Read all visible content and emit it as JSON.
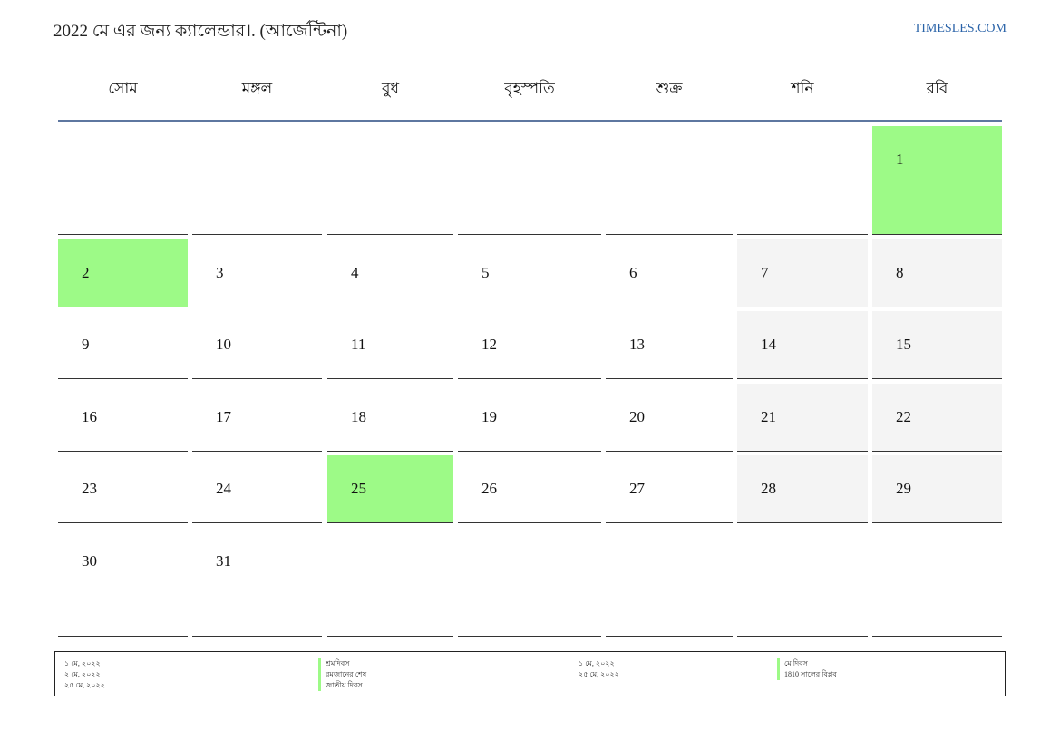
{
  "header": {
    "title": "2022 মে এর জন্য ক্যালেন্ডার।. (আর্জেন্টিনা)",
    "site": "TIMESLES.COM"
  },
  "weekdays": [
    "সোম",
    "মঙ্গল",
    "বুধ",
    "বৃহস্পতি",
    "শুক্র",
    "শনি",
    "রবি"
  ],
  "weeks": [
    [
      null,
      null,
      null,
      null,
      null,
      null,
      1
    ],
    [
      2,
      3,
      4,
      5,
      6,
      7,
      8
    ],
    [
      9,
      10,
      11,
      12,
      13,
      14,
      15
    ],
    [
      16,
      17,
      18,
      19,
      20,
      21,
      22
    ],
    [
      23,
      24,
      25,
      26,
      27,
      28,
      29
    ],
    [
      30,
      31,
      null,
      null,
      null,
      null,
      null
    ]
  ],
  "holiday_days": [
    1,
    2,
    25
  ],
  "colors": {
    "holiday": "#9dfa87",
    "weekend": "#f4f4f4",
    "header_rule": "#5e77a0",
    "link": "#2a63a8"
  },
  "legend": {
    "group1": {
      "dates": [
        "১ মে, ২০২২",
        "২ মে, ২০২২",
        "২৫ মে, ২০২২"
      ],
      "names": [
        "শ্রমদিবস",
        "রমজানের শেষ",
        "জাতীয় দিবস"
      ]
    },
    "group2": {
      "dates": [
        "১ মে, ২০২২",
        "২৫ মে, ২০২২"
      ],
      "names": [
        "মে দিবস",
        "1810 সালের বিপ্লব"
      ]
    }
  }
}
